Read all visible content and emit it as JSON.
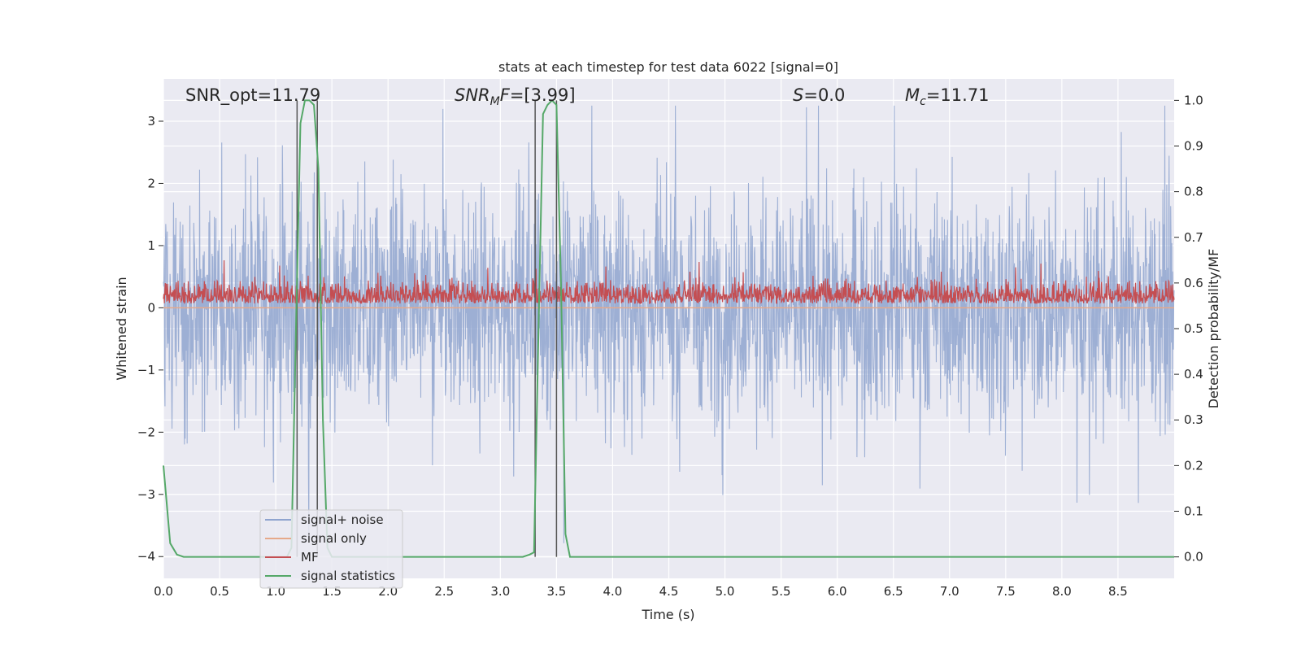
{
  "chart_data": {
    "type": "line",
    "title": "stats at each timestep for test data 6022 [signal=0]",
    "xlabel": "Time (s)",
    "ylabel_left": "Whitened strain",
    "ylabel_right": "Detection probability/MF",
    "xlim": [
      0.0,
      9.0
    ],
    "ylim_left": [
      -4.35,
      3.68
    ],
    "ylim_right": [
      -0.047,
      1.047
    ],
    "x_ticks": [
      "0.0",
      "0.5",
      "1.0",
      "1.5",
      "2.0",
      "2.5",
      "3.0",
      "3.5",
      "4.0",
      "4.5",
      "5.0",
      "5.5",
      "6.0",
      "6.5",
      "7.0",
      "7.5",
      "8.0",
      "8.5"
    ],
    "y_ticks_left": [
      "3",
      "2",
      "1",
      "0",
      "−1",
      "−2",
      "−3",
      "−4"
    ],
    "y_ticks_right": [
      "1.0",
      "0.9",
      "0.8",
      "0.7",
      "0.6",
      "0.5",
      "0.4",
      "0.3",
      "0.2",
      "0.1",
      "0.0"
    ],
    "grid": true,
    "legend_position": "lower-left",
    "annotations": {
      "snr_opt": "SNR_opt=11.79",
      "snr_mf_italic": "SNR",
      "snr_mf_sub": "M",
      "snr_mf_tail": "F",
      "snr_mf_value": "=[3.99]",
      "s_label": "S",
      "s_value": "=0.0",
      "mc_label": "M",
      "mc_sub": "c",
      "mc_value": "=11.71"
    },
    "series": [
      {
        "name": "signal+ noise",
        "color": "#4c72b0",
        "axis": "left",
        "description_range": [
          -3.8,
          3.25
        ]
      },
      {
        "name": "signal only",
        "color": "#dd8452",
        "axis": "left",
        "y_constant": 0.0
      },
      {
        "name": "MF",
        "color": "#c44e52",
        "axis": "right",
        "range": [
          0.55,
          0.68
        ]
      },
      {
        "name": "signal statistics",
        "color": "#55a868",
        "axis": "right",
        "x": [
          0.0,
          0.06,
          0.12,
          0.18,
          0.24,
          1.1,
          1.14,
          1.18,
          1.22,
          1.26,
          1.3,
          1.34,
          1.38,
          1.42,
          1.46,
          1.5,
          1.6,
          3.2,
          3.26,
          3.3,
          3.34,
          3.38,
          3.42,
          3.46,
          3.5,
          3.54,
          3.58,
          3.62,
          3.68,
          9.0
        ],
        "values": [
          0.2,
          0.03,
          0.005,
          0.0,
          0.0,
          0.0,
          0.02,
          0.5,
          0.95,
          1.0,
          1.0,
          0.99,
          0.85,
          0.3,
          0.02,
          0.0,
          0.0,
          0.0,
          0.005,
          0.01,
          0.5,
          0.97,
          0.99,
          1.0,
          0.99,
          0.6,
          0.05,
          0.0,
          0.0,
          0.0
        ]
      }
    ],
    "vertical_lines_x": [
      1.19,
      1.37,
      3.31,
      3.5
    ]
  }
}
